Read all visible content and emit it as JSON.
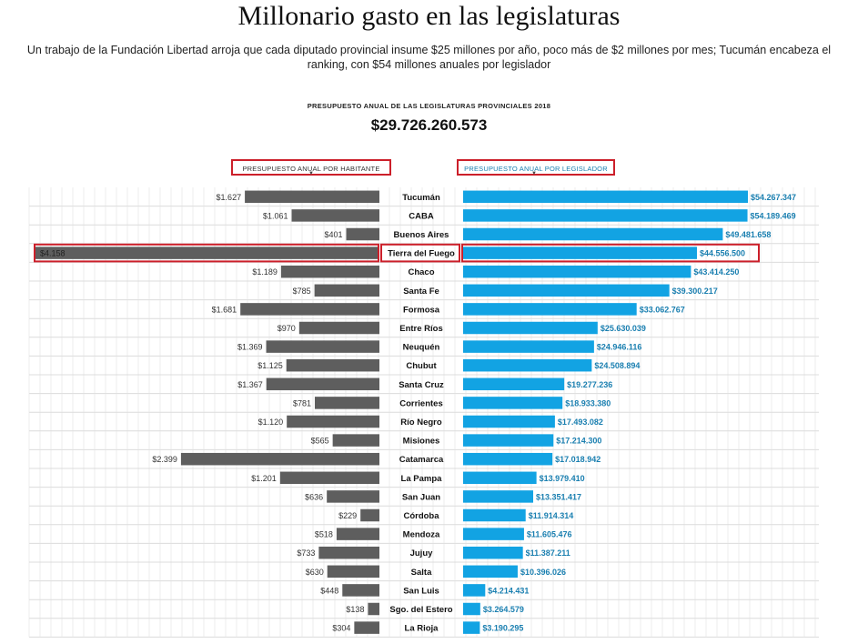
{
  "header": {
    "title": "Millonario gasto en las legislaturas",
    "subtitle": "Un trabajo de la Fundación Libertad arroja que cada diputado provincial insume $25 millones por año, poco más de $2 millones por mes; Tucumán encabeza el ranking, con $54 millones anuales por legislador",
    "kicker": "PRESUPUESTO ANUAL DE LAS LEGISLATURAS PROVINCIALES 2018",
    "total": "$29.726.260.573"
  },
  "colors": {
    "left_bar": "#5e5e5e",
    "right_bar": "#12a3e3",
    "right_label": "#1a7fb0",
    "highlight": "#cc1f2a"
  },
  "chart_data": {
    "type": "bar",
    "categories": [
      "Tucumán",
      "CABA",
      "Buenos Aires",
      "Tierra del Fuego",
      "Chaco",
      "Santa Fe",
      "Formosa",
      "Entre Ríos",
      "Neuquén",
      "Chubut",
      "Santa Cruz",
      "Corrientes",
      "Río Negro",
      "Misiones",
      "Catamarca",
      "La Pampa",
      "San Juan",
      "Córdoba",
      "Mendoza",
      "Jujuy",
      "Salta",
      "San Luis",
      "Sgo. del Estero",
      "La Rioja"
    ],
    "highlighted_category": "Tierra del Fuego",
    "series": [
      {
        "name": "PRESUPUESTO ANUAL POR HABITANTE",
        "values": [
          1627,
          1061,
          401,
          4158,
          1189,
          785,
          1681,
          970,
          1369,
          1125,
          1367,
          781,
          1120,
          565,
          2399,
          1201,
          636,
          229,
          518,
          733,
          630,
          448,
          138,
          304
        ],
        "labels": [
          "$1.627",
          "$1.061",
          "$401",
          "$4.158",
          "$1.189",
          "$785",
          "$1.681",
          "$970",
          "$1.369",
          "$1.125",
          "$1.367",
          "$781",
          "$1.120",
          "$565",
          "$2.399",
          "$1.201",
          "$636",
          "$229",
          "$518",
          "$733",
          "$630",
          "$448",
          "$138",
          "$304"
        ]
      },
      {
        "name": "PRESUPUESTO ANUAL POR LEGISLADOR",
        "values": [
          54267347,
          54189469,
          49481658,
          44556500,
          43414250,
          39300217,
          33062767,
          25630039,
          24946116,
          24508894,
          19277236,
          18933380,
          17493082,
          17214300,
          17018942,
          13979410,
          13351417,
          11914314,
          11605476,
          11387211,
          10396026,
          4214431,
          3264579,
          3190295
        ],
        "labels": [
          "$54.267.347",
          "$54.189.469",
          "$49.481.658",
          "$44.556.500",
          "$43.414.250",
          "$39.300.217",
          "$33.062.767",
          "$25.630.039",
          "$24.946.116",
          "$24.508.894",
          "$19.277.236",
          "$18.933.380",
          "$17.493.082",
          "$17.214.300",
          "$17.018.942",
          "$13.979.410",
          "$13.351.417",
          "$11.914.314",
          "$11.605.476",
          "$11.387.211",
          "$10.396.026",
          "$4.214.431",
          "$3.264.579",
          "$3.190.295"
        ]
      }
    ]
  }
}
